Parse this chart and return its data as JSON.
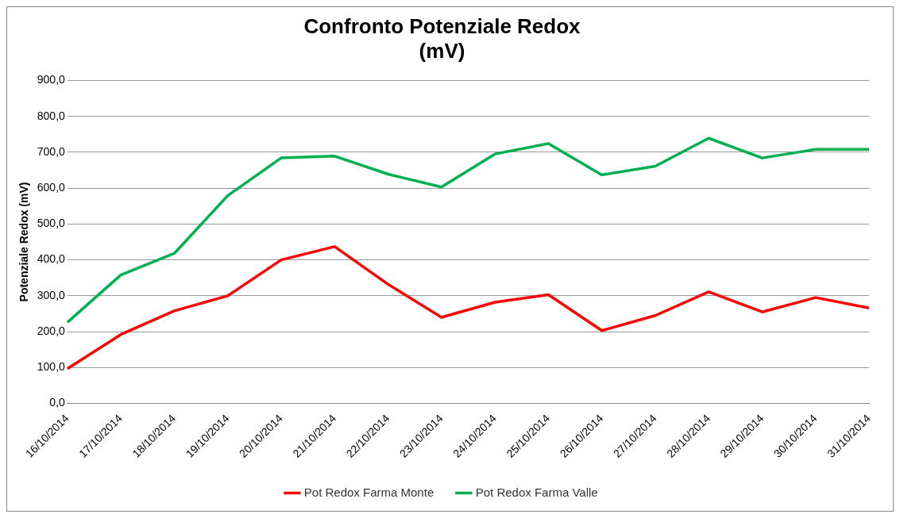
{
  "chart_data": {
    "type": "line",
    "title": [
      "Confronto Potenziale Redox",
      "(mV)"
    ],
    "ylabel": "Potenziale Redox (mV)",
    "categories": [
      "16/10/2014",
      "17/10/2014",
      "18/10/2014",
      "19/10/2014",
      "20/10/2014",
      "21/10/2014",
      "22/10/2014",
      "23/10/2014",
      "24/10/2014",
      "25/10/2014",
      "26/10/2014",
      "27/10/2014",
      "28/10/2014",
      "29/10/2014",
      "30/10/2014",
      "31/10/2014"
    ],
    "series": [
      {
        "name": "Pot Redox Farma Monte",
        "color": "#ff0000",
        "values": [
          97,
          192,
          258,
          300,
          400,
          437,
          332,
          240,
          282,
          303,
          203,
          245,
          311,
          255,
          295,
          266
        ]
      },
      {
        "name": "Pot Redox Farma Valle",
        "color": "#00b050",
        "values": [
          226,
          358,
          418,
          579,
          684,
          689,
          639,
          603,
          695,
          724,
          637,
          661,
          739,
          684,
          708,
          708
        ]
      }
    ],
    "ylim": [
      0,
      900
    ],
    "yticks": [
      {
        "value": 0,
        "label": "0,0"
      },
      {
        "value": 100,
        "label": "100,0"
      },
      {
        "value": 200,
        "label": "200,0"
      },
      {
        "value": 300,
        "label": "300,0"
      },
      {
        "value": 400,
        "label": "400,0"
      },
      {
        "value": 500,
        "label": "500,0"
      },
      {
        "value": 600,
        "label": "600,0"
      },
      {
        "value": 700,
        "label": "700,0"
      },
      {
        "value": 800,
        "label": "800,0"
      },
      {
        "value": 900,
        "label": "900,0"
      }
    ],
    "grid": "y",
    "legend": "bottom",
    "marker": "none",
    "line_style": "solid"
  }
}
